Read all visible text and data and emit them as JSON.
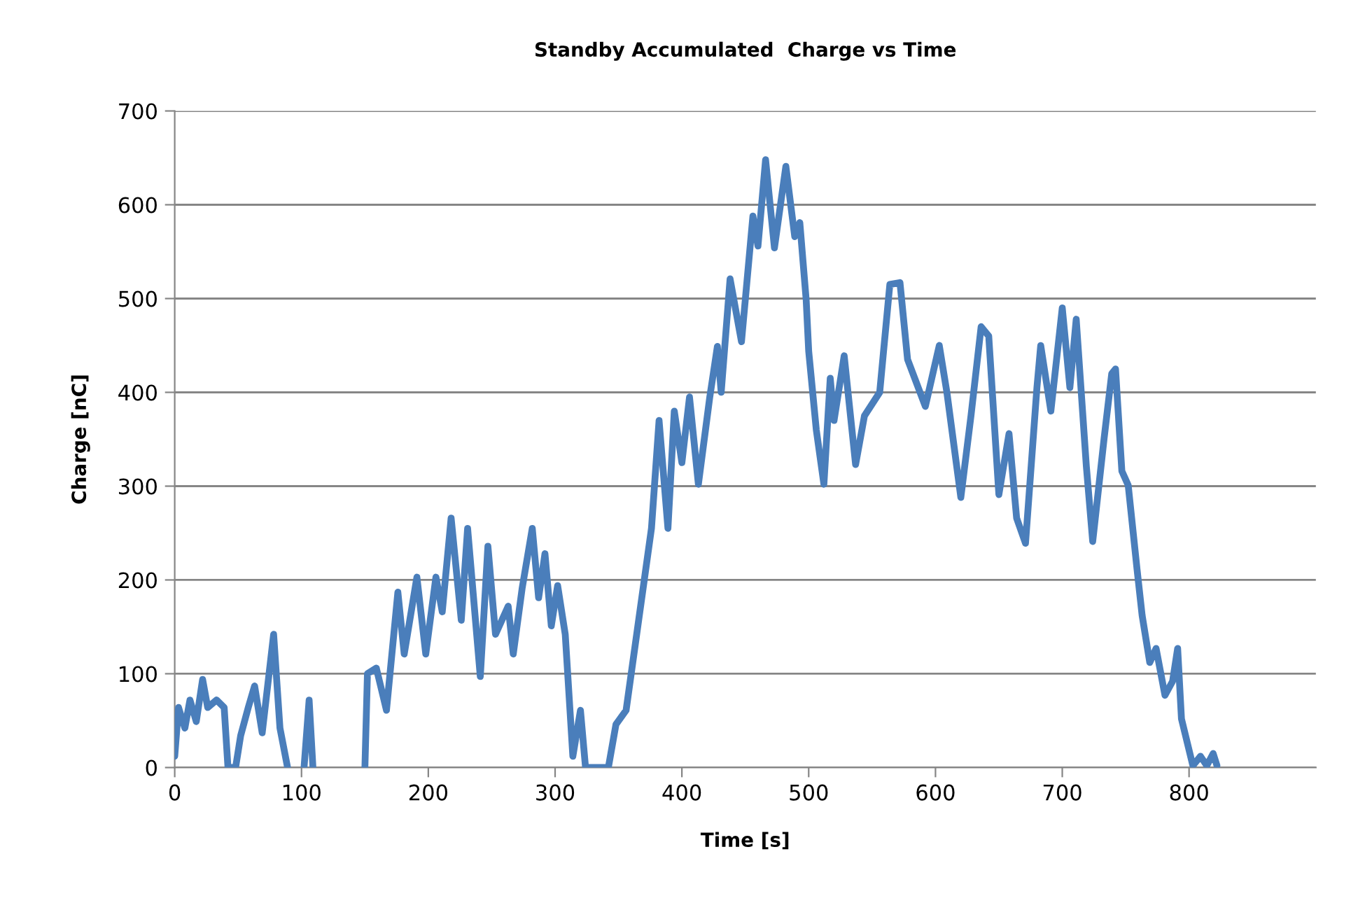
{
  "chart_data": {
    "type": "line",
    "title": "Standby Accumulated  Charge vs Time",
    "xlabel": "Time [s]",
    "ylabel": "Charge [nC]",
    "xlim": [
      0,
      900
    ],
    "xticks": [
      0,
      100,
      200,
      300,
      400,
      500,
      600,
      700,
      800
    ],
    "ylim": [
      0,
      700
    ],
    "yticks": [
      0,
      100,
      200,
      300,
      400,
      500,
      600,
      700
    ],
    "grid": "y",
    "marker": "none",
    "line_style": "solid",
    "series": [
      {
        "color": "#4a7ebb",
        "x": [
          0,
          3,
          8,
          12,
          17,
          22,
          26,
          33,
          39,
          42,
          48,
          52,
          58,
          63,
          69,
          78,
          83,
          89,
          95,
          102,
          106,
          109,
          115,
          150,
          152,
          159,
          167,
          176,
          181,
          191,
          198,
          206,
          211,
          218,
          226,
          231,
          241,
          247,
          253,
          263,
          267,
          274,
          282,
          287,
          292,
          297,
          302,
          308,
          314,
          320,
          324,
          342,
          348,
          356,
          376,
          382,
          389,
          394,
          400,
          406,
          413,
          422,
          428,
          431,
          438,
          447,
          456,
          460,
          466,
          473,
          482,
          489,
          493,
          498,
          500,
          506,
          512,
          517,
          520,
          528,
          537,
          544,
          556,
          564,
          572,
          578,
          592,
          603,
          609,
          620,
          628,
          636,
          642,
          650,
          658,
          664,
          671,
          680,
          683,
          691,
          700,
          706,
          711,
          719,
          724,
          733,
          739,
          742,
          747,
          752,
          759,
          763,
          769,
          774,
          781,
          787,
          791,
          794,
          803,
          809,
          814,
          819,
          822
        ],
        "values": [
          12,
          64,
          42,
          72,
          49,
          94,
          64,
          72,
          64,
          0,
          0,
          34,
          64,
          87,
          37,
          142,
          42,
          0,
          null,
          0,
          72,
          0,
          null,
          0,
          100,
          106,
          61,
          187,
          121,
          203,
          121,
          203,
          166,
          266,
          157,
          255,
          97,
          236,
          142,
          172,
          121,
          191,
          255,
          181,
          228,
          151,
          194,
          142,
          12,
          61,
          0,
          0,
          46,
          61,
          255,
          370,
          255,
          380,
          325,
          395,
          302,
          395,
          449,
          400,
          521,
          454,
          588,
          556,
          648,
          554,
          641,
          566,
          581,
          499,
          444,
          360,
          302,
          415,
          370,
          439,
          323,
          375,
          400,
          515,
          517,
          435,
          385,
          450,
          400,
          288,
          375,
          470,
          460,
          291,
          356,
          266,
          239,
          405,
          450,
          380,
          490,
          405,
          478,
          321,
          241,
          351,
          420,
          425,
          316,
          301,
          211,
          162,
          112,
          127,
          77,
          92,
          127,
          52,
          2,
          12,
          2,
          15,
          2
        ]
      }
    ]
  }
}
